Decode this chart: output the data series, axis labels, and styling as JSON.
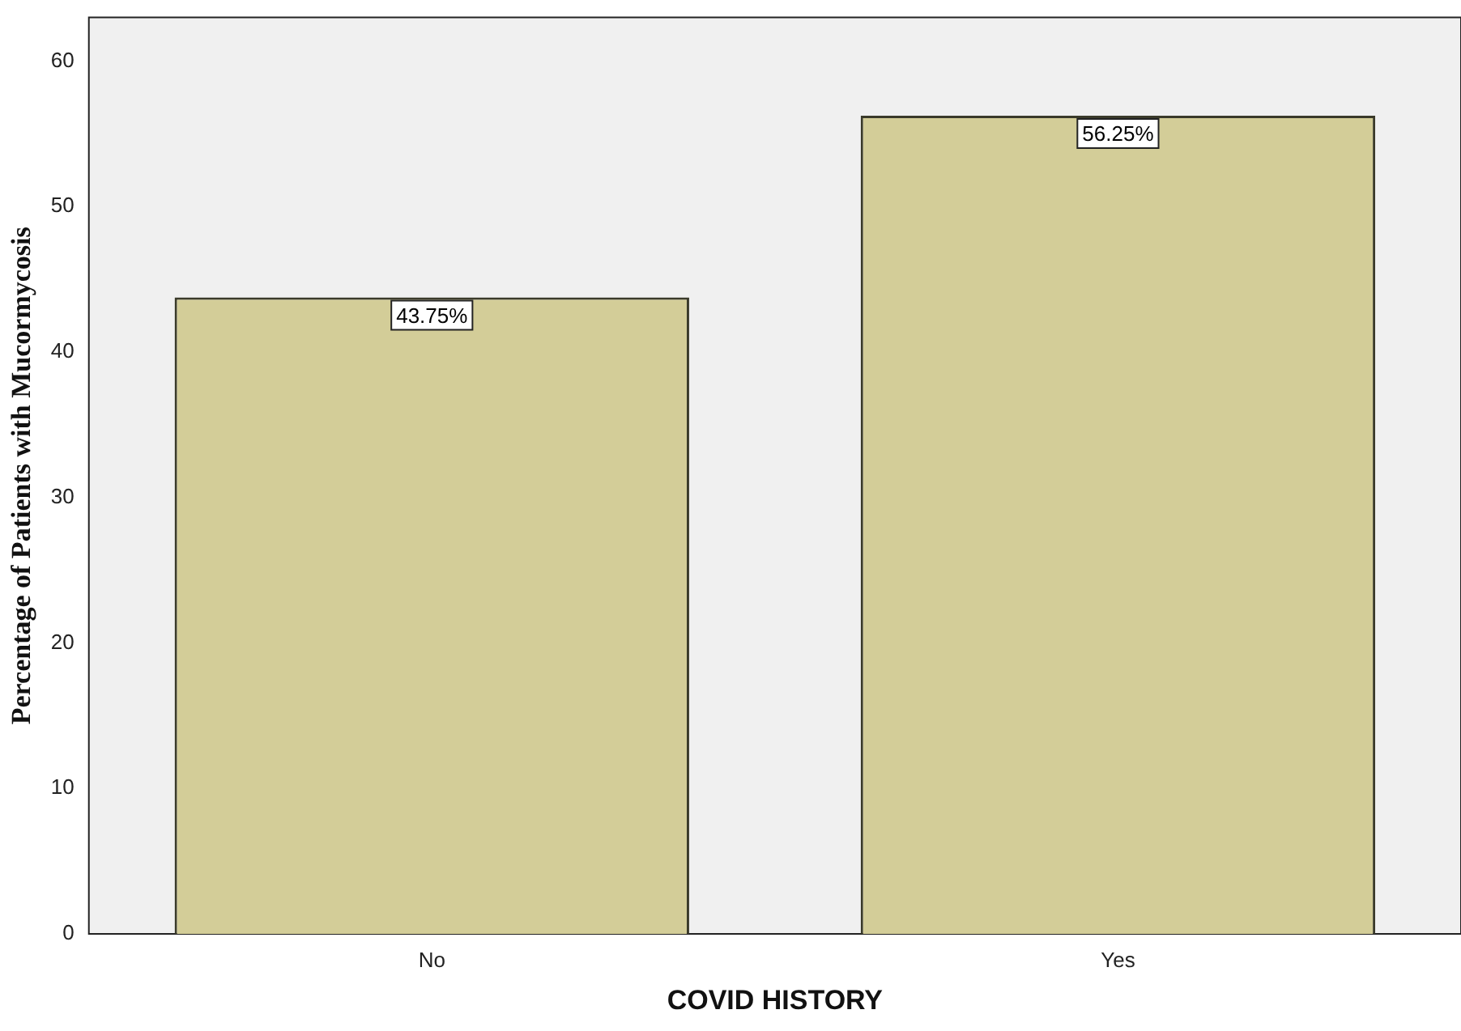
{
  "chart_data": {
    "type": "bar",
    "xlabel": "COVID HISTORY",
    "ylabel": "Percentage of Patients with Mucormycosis",
    "categories": [
      "No",
      "Yes"
    ],
    "values": [
      43.75,
      56.25
    ],
    "value_labels": [
      "43.75%",
      "56.25%"
    ],
    "color": "#d3cd98",
    "ylim": [
      0,
      63
    ],
    "yticks": [
      0,
      10,
      20,
      30,
      40,
      50,
      60
    ],
    "grid": false,
    "legend": false
  }
}
